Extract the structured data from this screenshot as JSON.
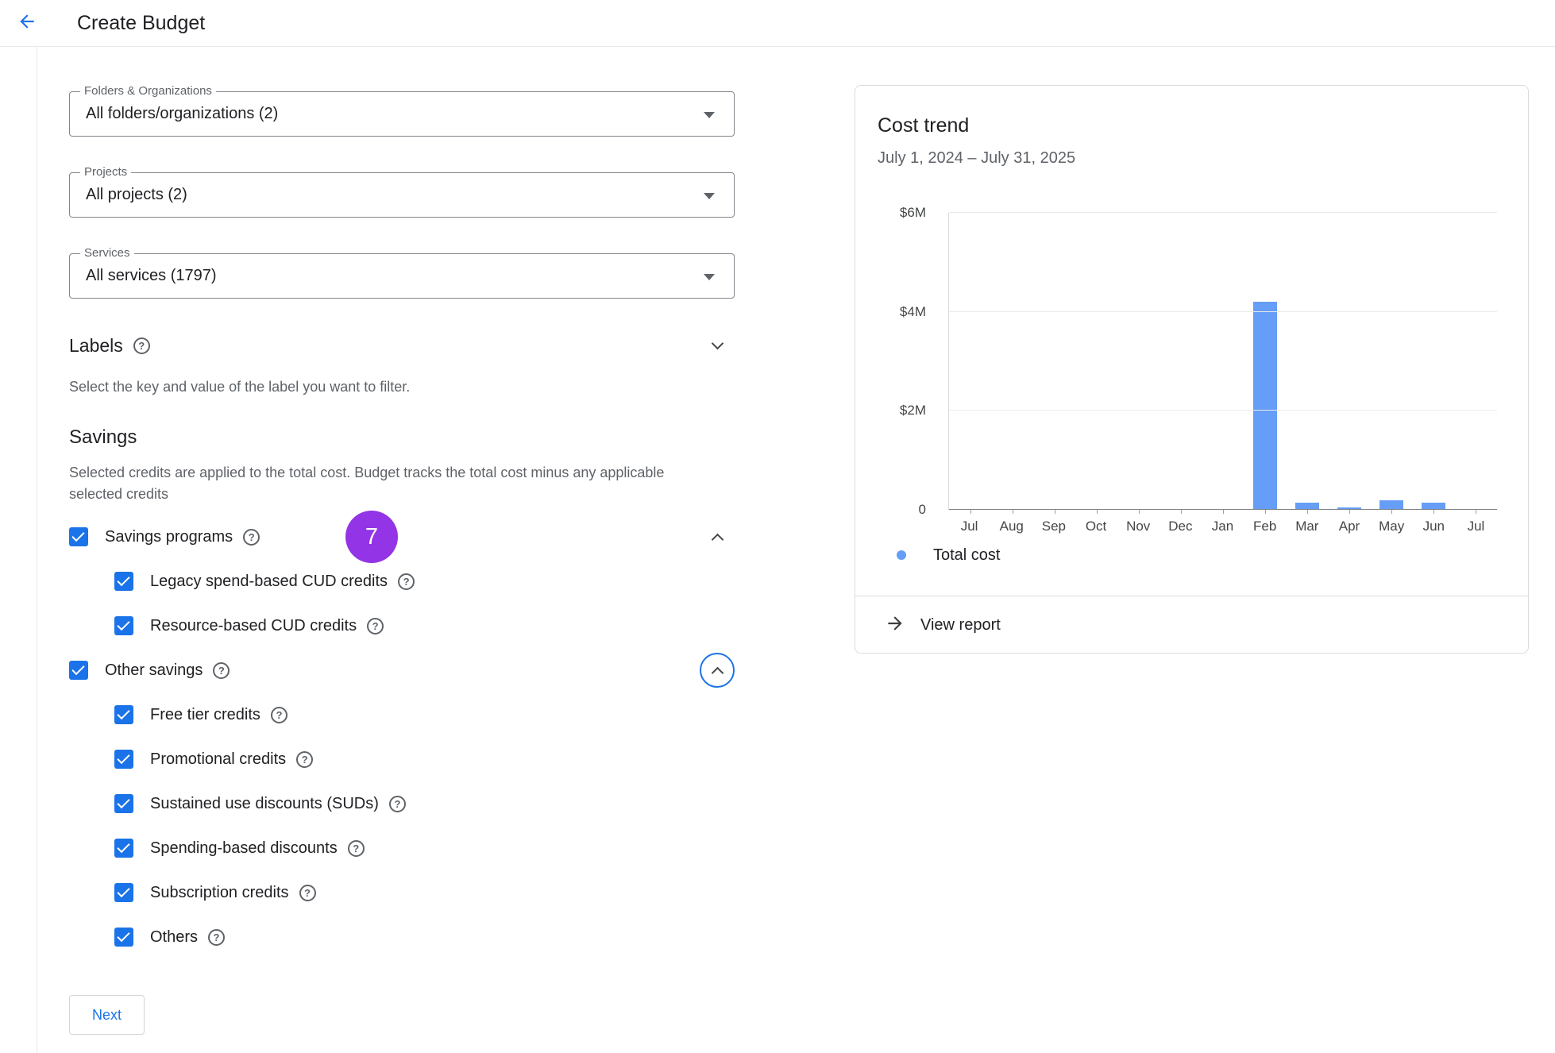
{
  "header": {
    "title": "Create Budget"
  },
  "filters": {
    "folders_label": "Folders & Organizations",
    "folders_value": "All folders/organizations (2)",
    "projects_label": "Projects",
    "projects_value": "All projects (2)",
    "services_label": "Services",
    "services_value": "All services (1797)"
  },
  "labels_section": {
    "title": "Labels",
    "description": "Select the key and value of the label you want to filter."
  },
  "savings": {
    "title": "Savings",
    "description": "Selected credits are applied to the total cost. Budget tracks the total cost minus any applicable selected credits",
    "step_badge": "7",
    "badge_color": "#9334e6",
    "groups": [
      {
        "label": "Savings programs",
        "checked": true,
        "children": [
          "Legacy spend-based CUD credits",
          "Resource-based CUD credits"
        ]
      },
      {
        "label": "Other savings",
        "checked": true,
        "children": [
          "Free tier credits",
          "Promotional credits",
          "Sustained use discounts (SUDs)",
          "Spending-based discounts",
          "Subscription credits",
          "Others"
        ]
      }
    ]
  },
  "next_button_label": "Next",
  "cost_trend": {
    "title": "Cost trend",
    "date_range": "July 1, 2024 – July 31, 2025",
    "legend_label": "Total cost",
    "view_report_label": "View report"
  },
  "chart_data": {
    "type": "bar",
    "title": "Cost trend",
    "subtitle": "July 1, 2024 – July 31, 2025",
    "x_categories": [
      "Jul",
      "Aug",
      "Sep",
      "Oct",
      "Nov",
      "Dec",
      "Jan",
      "Feb",
      "Mar",
      "Apr",
      "May",
      "Jun",
      "Jul"
    ],
    "values_millions_usd": [
      0,
      0,
      0,
      0,
      0,
      0,
      0,
      4.2,
      0.15,
      0.05,
      0.2,
      0.15,
      0
    ],
    "ylim": [
      0,
      6
    ],
    "yticks": [
      {
        "label": "$6M",
        "value": 6
      },
      {
        "label": "$4M",
        "value": 4
      },
      {
        "label": "$2M",
        "value": 2
      },
      {
        "label": "0",
        "value": 0
      }
    ],
    "grid": true,
    "bar_color": "#669df6",
    "legend": [
      "Total cost"
    ],
    "legend_position": "bottom-left"
  },
  "colors": {
    "accent": "#1a73e8"
  }
}
